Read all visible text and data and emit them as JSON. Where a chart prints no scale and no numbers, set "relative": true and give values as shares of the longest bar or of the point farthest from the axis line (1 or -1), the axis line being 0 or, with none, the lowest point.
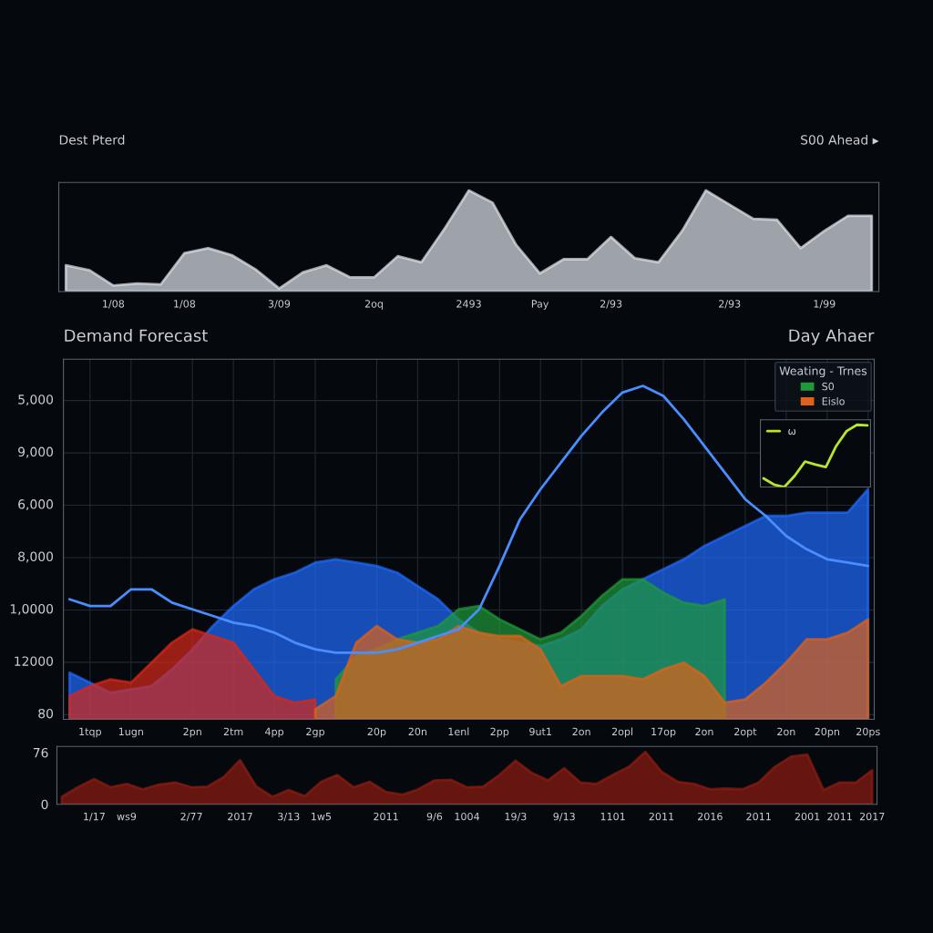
{
  "chart_data": [
    {
      "type": "area",
      "title": "Dest Pterd",
      "subtitle": "S00 Ahead ▸",
      "relative": true,
      "tick_labels": "x",
      "grid": false,
      "categories": [
        null,
        null,
        "1/08",
        null,
        null,
        "1/08",
        null,
        null,
        null,
        "3/09",
        null,
        null,
        null,
        "2oq",
        null,
        null,
        null,
        "2493",
        null,
        null,
        "Pay",
        null,
        null,
        "2/93",
        null,
        null,
        null,
        null,
        "2/93",
        null,
        null,
        null,
        "1/99",
        null,
        null
      ],
      "series": [
        {
          "color": "#dfe6ee",
          "values": [
            0.26,
            0.21,
            0.06,
            0.08,
            0.07,
            0.38,
            0.43,
            0.36,
            0.22,
            0.03,
            0.19,
            0.26,
            0.14,
            0.14,
            0.35,
            0.29,
            0.63,
            1,
            0.88,
            0.46,
            0.18,
            0.32,
            0.32,
            0.54,
            0.33,
            0.29,
            0.6,
            1,
            0.86,
            0.72,
            0.71,
            0.43,
            0.6,
            0.75,
            0.75
          ]
        }
      ]
    },
    {
      "type": "area",
      "title": "Demand Forecast",
      "subtitle": "Day Ahaer",
      "relative": true,
      "tick_labels": "x",
      "grid": true,
      "legend": "top right",
      "legend_title": "Weating - Trnes",
      "annotations": [
        "5,000",
        "9,000",
        "6,000",
        "8,000",
        "1,0000",
        "12000",
        "80"
      ],
      "categories": [
        null,
        "1tqp",
        null,
        "1ugn",
        null,
        null,
        "2pn",
        null,
        "2tm",
        null,
        "4pp",
        null,
        "2gp",
        null,
        null,
        "20p",
        null,
        "20n",
        null,
        "1enl",
        null,
        "2pp",
        null,
        "9ut1",
        null,
        "2on",
        null,
        "2opl",
        null,
        "17op",
        null,
        "2on",
        null,
        "2opt",
        null,
        "2on",
        null,
        "20pn",
        null,
        "20ps"
      ],
      "series": [
        {
          "color": "#1f6bff",
          "values": [
            0.14,
            0.11,
            0.08,
            0.09,
            0.1,
            0.15,
            0.21,
            0.28,
            0.34,
            0.39,
            0.42,
            0.44,
            0.47,
            0.48,
            0.47,
            0.46,
            0.44,
            0.4,
            0.36,
            0.3,
            0.26,
            0.24,
            0.23,
            0.22,
            0.24,
            0.27,
            0.34,
            0.39,
            0.42,
            0.45,
            0.48,
            0.52,
            0.55,
            0.58,
            0.61,
            0.61,
            0.62,
            0.62,
            0.62,
            0.69
          ]
        },
        {
          "name": "S0",
          "color": "#1f9a3a",
          "values": [
            null,
            null,
            null,
            null,
            null,
            null,
            null,
            null,
            null,
            null,
            null,
            null,
            null,
            0.12,
            0.19,
            0.21,
            0.24,
            0.26,
            0.28,
            0.33,
            0.34,
            0.3,
            0.27,
            0.24,
            0.26,
            0.31,
            0.37,
            0.42,
            0.42,
            0.38,
            0.35,
            0.34,
            0.36,
            null,
            null,
            null,
            null,
            null,
            null,
            null
          ]
        },
        {
          "color": "#d8281a",
          "values": [
            0.07,
            0.1,
            0.12,
            0.11,
            0.17,
            0.23,
            0.27,
            0.25,
            0.23,
            0.15,
            0.07,
            0.05,
            0.06,
            null,
            null,
            null,
            null,
            null,
            null,
            null,
            null,
            null,
            null,
            null,
            null,
            null,
            null,
            null,
            null,
            null,
            null,
            null,
            null,
            null,
            null,
            null,
            null,
            null,
            null,
            null
          ]
        },
        {
          "name": "Eislo",
          "color": "#e0621a",
          "values": [
            null,
            null,
            null,
            null,
            null,
            null,
            null,
            null,
            null,
            null,
            null,
            null,
            0.03,
            0.07,
            0.23,
            0.28,
            0.24,
            0.23,
            0.24,
            0.28,
            0.26,
            0.25,
            0.25,
            0.21,
            0.1,
            0.13,
            0.13,
            0.13,
            0.12,
            0.15,
            0.17,
            0.13,
            0.05,
            0.06,
            0.11,
            0.17,
            0.24,
            0.24,
            0.26,
            0.3
          ]
        },
        {
          "type": "line",
          "color": "#4a8dff",
          "values": [
            0.36,
            0.34,
            0.34,
            0.39,
            0.39,
            0.35,
            0.33,
            0.31,
            0.29,
            0.28,
            0.26,
            0.23,
            0.21,
            0.2,
            0.2,
            0.2,
            0.21,
            0.23,
            0.25,
            0.27,
            0.33,
            0.46,
            0.6,
            0.69,
            0.77,
            0.85,
            0.92,
            0.98,
            1,
            0.97,
            0.9,
            0.82,
            0.74,
            0.66,
            0.61,
            0.55,
            0.51,
            0.48,
            0.47,
            0.46
          ]
        }
      ]
    },
    {
      "type": "area",
      "grid": false,
      "ylim": [
        0,
        85
      ],
      "yticks": [
        0,
        76
      ],
      "categories": [
        null,
        null,
        "1/17",
        null,
        "ws9",
        null,
        null,
        null,
        "2/77",
        null,
        null,
        "2017",
        null,
        null,
        "3/13",
        null,
        "1w5",
        null,
        null,
        null,
        "2011",
        null,
        null,
        "9/6",
        null,
        "1004",
        null,
        null,
        "19/3",
        null,
        null,
        "9/13",
        null,
        null,
        "1101",
        null,
        null,
        "2011",
        null,
        null,
        "2016",
        null,
        null,
        "2011",
        null,
        null,
        "2001",
        null,
        "2011",
        null,
        "2017"
      ],
      "series": [
        {
          "color": "#8e1c12",
          "values": [
            11,
            25,
            37,
            25,
            30,
            22,
            29,
            32,
            25,
            26,
            40,
            65,
            26,
            11,
            21,
            12,
            33,
            43,
            25,
            33,
            18,
            14,
            22,
            35,
            36,
            25,
            26,
            43,
            64,
            46,
            35,
            53,
            32,
            30,
            43,
            55,
            77,
            48,
            33,
            30,
            22,
            23,
            22,
            32,
            55,
            70,
            73,
            21,
            32,
            32,
            50
          ]
        }
      ]
    },
    {
      "type": "line",
      "relative": true,
      "tick_labels": false,
      "grid": false,
      "legend": "top left",
      "categories": [
        null,
        null,
        null,
        null,
        null,
        null,
        null,
        null,
        null,
        null,
        null
      ],
      "series": [
        {
          "name": "ω",
          "color": "#b8e62a",
          "values": [
            0.14,
            0.04,
            0,
            0.18,
            0.41,
            0.36,
            0.32,
            0.66,
            0.9,
            1,
            0.99
          ]
        }
      ]
    }
  ]
}
